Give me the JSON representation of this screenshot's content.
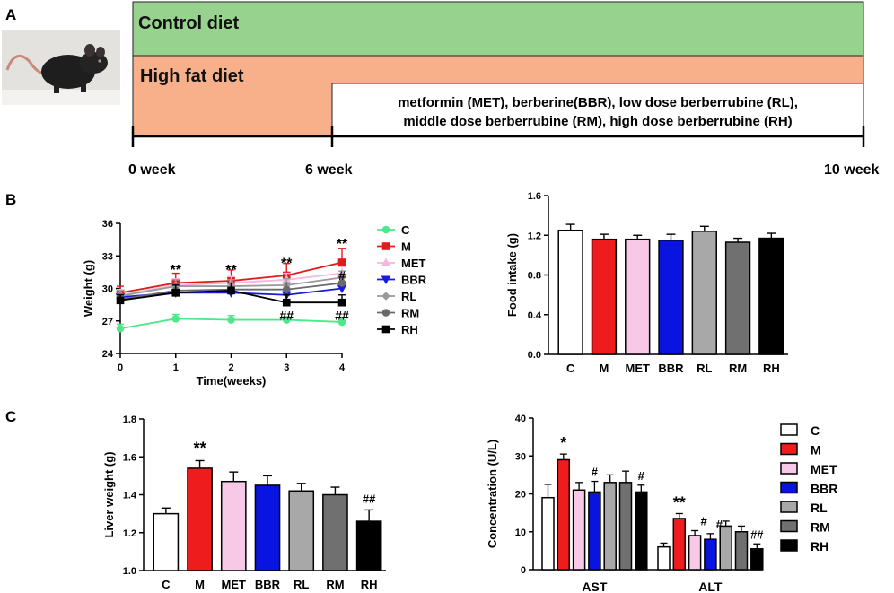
{
  "panels": {
    "A": "A",
    "B": "B",
    "C": "C"
  },
  "timeline": {
    "bands": [
      {
        "label": "Control diet",
        "color": "#97d38f"
      },
      {
        "label": "High fat diet",
        "color": "#f7b089"
      }
    ],
    "treatment_lines": [
      "metformin (MET), berberine(BBR), low dose berberrubine (RL),",
      "middle dose berberrubine (RM), high dose berberrubine (RH)"
    ],
    "ticks": [
      "0 week",
      "6 week",
      "10 week"
    ]
  },
  "groups": [
    "C",
    "M",
    "MET",
    "BBR",
    "RL",
    "RM",
    "RH"
  ],
  "colors": {
    "C": "#ffffff",
    "M": "#ee1c1c",
    "MET": "#f8c9e6",
    "BBR": "#0a14e0",
    "RL": "#a8a8a8",
    "RM": "#707070",
    "RH": "#000000",
    "line_C": "#4ee88a",
    "line_M": "#e31a1c",
    "line_MET": "#f4b8e0",
    "line_BBR": "#1a1ae0",
    "line_RL": "#9a9a9a",
    "line_RM": "#6a6a6a",
    "line_RH": "#000000"
  },
  "chart_data": [
    {
      "type": "line",
      "title": "",
      "xlabel": "Time(weeks)",
      "ylabel": "Weight (g)",
      "x": [
        0,
        1,
        2,
        3,
        4
      ],
      "xlim": [
        0,
        4
      ],
      "ylim": [
        24,
        36
      ],
      "yticks": [
        24,
        27,
        30,
        33,
        36
      ],
      "series": [
        {
          "name": "C",
          "marker": "circle",
          "values": [
            26.3,
            27.2,
            27.1,
            27.1,
            26.9
          ],
          "errors": [
            0.4,
            0.4,
            0.4,
            0.3,
            0.4
          ]
        },
        {
          "name": "M",
          "marker": "square",
          "values": [
            29.6,
            30.5,
            30.7,
            31.2,
            32.4
          ],
          "errors": [
            0.6,
            0.9,
            1.0,
            1.1,
            1.3
          ]
        },
        {
          "name": "MET",
          "marker": "triangle-up",
          "values": [
            29.4,
            30.3,
            30.5,
            30.8,
            31.4
          ],
          "errors": [
            0.5,
            0.6,
            0.6,
            0.6,
            0.6
          ]
        },
        {
          "name": "BBR",
          "marker": "triangle-down",
          "values": [
            29.2,
            29.6,
            29.6,
            29.4,
            30.0
          ],
          "errors": [
            0.5,
            0.6,
            0.6,
            0.6,
            0.6
          ]
        },
        {
          "name": "RL",
          "marker": "diamond",
          "values": [
            29.3,
            30.2,
            30.2,
            30.3,
            31.0
          ],
          "errors": [
            0.5,
            0.6,
            0.6,
            0.6,
            0.6
          ]
        },
        {
          "name": "RM",
          "marker": "circle",
          "values": [
            29.0,
            29.8,
            29.9,
            29.9,
            30.5
          ],
          "errors": [
            0.5,
            0.6,
            0.6,
            0.6,
            0.6
          ]
        },
        {
          "name": "RH",
          "marker": "square",
          "values": [
            28.9,
            29.6,
            29.8,
            28.7,
            28.7
          ],
          "errors": [
            0.5,
            0.7,
            0.7,
            0.7,
            0.7
          ]
        }
      ],
      "annotations": [
        {
          "x": 1,
          "y": 31.8,
          "text": "**"
        },
        {
          "x": 2,
          "y": 31.8,
          "text": "**"
        },
        {
          "x": 3,
          "y": 32.4,
          "text": "**"
        },
        {
          "x": 4,
          "y": 34.2,
          "text": "**"
        },
        {
          "x": 4,
          "y": 31.3,
          "text": "#"
        },
        {
          "x": 3,
          "y": 27.6,
          "text": "##"
        },
        {
          "x": 4,
          "y": 27.6,
          "text": "##"
        }
      ]
    },
    {
      "type": "bar",
      "title": "",
      "xlabel": "",
      "ylabel": "Food intake (g)",
      "categories": [
        "C",
        "M",
        "MET",
        "BBR",
        "RL",
        "RM",
        "RH"
      ],
      "values": [
        1.25,
        1.16,
        1.16,
        1.15,
        1.24,
        1.13,
        1.17
      ],
      "errors": [
        0.06,
        0.05,
        0.04,
        0.06,
        0.05,
        0.04,
        0.05
      ],
      "ylim": [
        0,
        1.6
      ],
      "yticks": [
        "0.0",
        "0.4",
        "0.8",
        "1.2",
        "1.6"
      ],
      "annotations": []
    },
    {
      "type": "bar",
      "title": "",
      "xlabel": "",
      "ylabel": "Liver weight (g)",
      "categories": [
        "C",
        "M",
        "MET",
        "BBR",
        "RL",
        "RM",
        "RH"
      ],
      "values": [
        1.3,
        1.54,
        1.47,
        1.45,
        1.42,
        1.4,
        1.26
      ],
      "errors": [
        0.03,
        0.04,
        0.05,
        0.05,
        0.04,
        0.04,
        0.06
      ],
      "ylim": [
        1.0,
        1.8
      ],
      "yticks": [
        "1.0",
        "1.2",
        "1.4",
        "1.6",
        "1.8"
      ],
      "annotations": [
        {
          "category": "M",
          "text": "**"
        },
        {
          "category": "RH",
          "text": "##"
        }
      ]
    },
    {
      "type": "bar",
      "title": "",
      "xlabel": "",
      "ylabel": "Concentration (U/L)",
      "categories": [
        "AST",
        "ALT"
      ],
      "series": [
        {
          "name": "C",
          "values": [
            19.0,
            6.0
          ],
          "errors": [
            3.5,
            1.0
          ]
        },
        {
          "name": "M",
          "values": [
            29.0,
            13.5
          ],
          "errors": [
            1.5,
            1.3
          ]
        },
        {
          "name": "MET",
          "values": [
            21.0,
            9.0
          ],
          "errors": [
            2.0,
            1.3
          ]
        },
        {
          "name": "BBR",
          "values": [
            20.5,
            8.0
          ],
          "errors": [
            2.8,
            1.5
          ]
        },
        {
          "name": "RL",
          "values": [
            23.0,
            11.5
          ],
          "errors": [
            2.0,
            1.3
          ]
        },
        {
          "name": "RM",
          "values": [
            23.0,
            10.0
          ],
          "errors": [
            3.0,
            1.5
          ]
        },
        {
          "name": "RH",
          "values": [
            20.5,
            5.5
          ],
          "errors": [
            1.8,
            1.3
          ]
        }
      ],
      "ylim": [
        0,
        40
      ],
      "yticks": [
        "0",
        "10",
        "20",
        "30",
        "40"
      ],
      "annotations": [
        {
          "series": "M",
          "category": "AST",
          "text": "*"
        },
        {
          "series": "BBR",
          "category": "AST",
          "text": "#"
        },
        {
          "series": "RH",
          "category": "AST",
          "text": "#"
        },
        {
          "series": "M",
          "category": "ALT",
          "text": "**"
        },
        {
          "series": "MET",
          "category": "ALT",
          "text": "#"
        },
        {
          "series": "BBR",
          "category": "ALT",
          "text": "#"
        },
        {
          "series": "RH",
          "category": "ALT",
          "text": "##"
        }
      ],
      "legend": "right"
    }
  ]
}
